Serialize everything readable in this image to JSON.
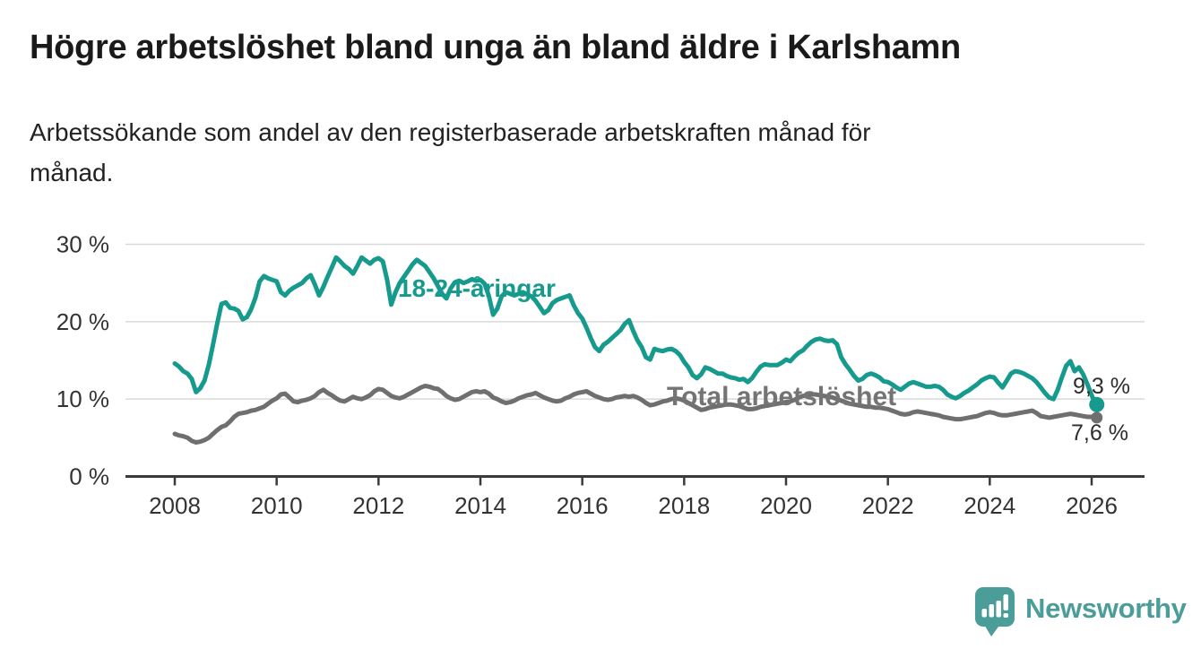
{
  "header": {
    "title": "Högre arbetslöshet bland unga än bland äldre i Karlshamn",
    "subtitle": "Arbetssökande som andel av den registerbaserade arbetskraften månad för\nmånad."
  },
  "footer": {
    "logo_text": "Newsworthy"
  },
  "colors": {
    "accent_teal": "#169a8d",
    "line_gray": "#6f6f6f",
    "label_gray": "#747474",
    "brand_teal": "#4b9d99",
    "grid": "#d9d9d9",
    "axis": "#3a3a3a",
    "tick_text": "#333333",
    "value_text": "#2d2d2d"
  },
  "chart_data": {
    "type": "line",
    "title": "Högre arbetslöshet bland unga än bland äldre i Karlshamn",
    "subtitle": "Arbetssökande som andel av den registerbaserade arbetskraften månad för månad.",
    "xlabel": "",
    "ylabel": "",
    "grid": "horizontal",
    "legend_position": "inline-labels",
    "x_start_year": 2008,
    "x_step_months": 1,
    "xlim_years": [
      2007.05,
      2027.1
    ],
    "ylim": [
      0,
      30
    ],
    "x_ticks": [
      "2008",
      "2010",
      "2012",
      "2014",
      "2016",
      "2018",
      "2020",
      "2022",
      "2024",
      "2026"
    ],
    "y_ticks": [
      {
        "value": 0,
        "label": "0 %"
      },
      {
        "value": 10,
        "label": "10 %"
      },
      {
        "value": 20,
        "label": "20 %"
      },
      {
        "value": 30,
        "label": "30 %"
      }
    ],
    "series": [
      {
        "name": "Total arbetslöshet",
        "color": "#6f6f6f",
        "end_label": "7,6 %",
        "end_value": 7.6,
        "values": [
          5.5,
          5.3,
          5.2,
          5.0,
          4.6,
          4.4,
          4.5,
          4.7,
          5.0,
          5.5,
          6.0,
          6.4,
          6.6,
          7.1,
          7.7,
          8.1,
          8.2,
          8.3,
          8.5,
          8.6,
          8.8,
          9.0,
          9.4,
          9.8,
          10.1,
          10.6,
          10.7,
          10.2,
          9.7,
          9.6,
          9.8,
          9.9,
          10.1,
          10.4,
          10.9,
          11.2,
          10.8,
          10.5,
          10.1,
          9.8,
          9.7,
          10.0,
          10.3,
          10.1,
          10.0,
          10.2,
          10.5,
          11.0,
          11.3,
          11.2,
          10.8,
          10.4,
          10.2,
          10.1,
          10.3,
          10.6,
          10.9,
          11.2,
          11.5,
          11.7,
          11.6,
          11.4,
          11.3,
          10.9,
          10.4,
          10.1,
          9.9,
          10.0,
          10.3,
          10.6,
          10.9,
          11.0,
          10.9,
          11.0,
          10.7,
          10.2,
          10.0,
          9.7,
          9.5,
          9.6,
          9.8,
          10.1,
          10.3,
          10.5,
          10.6,
          10.8,
          10.5,
          10.2,
          10.0,
          9.8,
          9.7,
          9.8,
          10.1,
          10.3,
          10.6,
          10.8,
          10.9,
          11.0,
          10.7,
          10.4,
          10.2,
          10.0,
          9.9,
          10.0,
          10.2,
          10.3,
          10.4,
          10.3,
          10.4,
          10.2,
          9.9,
          9.5,
          9.2,
          9.3,
          9.5,
          9.7,
          9.8,
          10.0,
          10.1,
          10.0,
          9.8,
          9.5,
          9.2,
          8.9,
          8.6,
          8.7,
          8.9,
          9.0,
          9.1,
          9.2,
          9.3,
          9.3,
          9.2,
          9.1,
          8.9,
          8.7,
          8.7,
          8.8,
          9.0,
          9.1,
          9.2,
          9.3,
          9.4,
          9.5,
          9.6,
          9.7,
          9.9,
          10.2,
          10.4,
          10.5,
          10.6,
          10.6,
          10.5,
          10.4,
          10.3,
          10.2,
          10.0,
          9.8,
          9.6,
          9.4,
          9.3,
          9.2,
          9.1,
          9.0,
          9.0,
          8.9,
          8.9,
          8.8,
          8.7,
          8.5,
          8.3,
          8.1,
          8.0,
          8.1,
          8.3,
          8.4,
          8.3,
          8.2,
          8.1,
          8.0,
          7.9,
          7.7,
          7.6,
          7.5,
          7.4,
          7.4,
          7.5,
          7.6,
          7.7,
          7.8,
          8.0,
          8.2,
          8.3,
          8.2,
          8.0,
          7.9,
          7.9,
          8.0,
          8.1,
          8.2,
          8.3,
          8.4,
          8.5,
          8.2,
          7.8,
          7.7,
          7.6,
          7.7,
          7.8,
          7.9,
          8.0,
          8.1,
          8.0,
          7.9,
          7.8,
          7.7,
          7.7,
          7.6
        ]
      },
      {
        "name": "18-24-åringar",
        "color": "#169a8d",
        "end_label": "9,3 %",
        "end_value": 9.3,
        "values": [
          14.6,
          14.2,
          13.6,
          13.3,
          12.6,
          10.9,
          11.4,
          12.4,
          14.4,
          17.0,
          19.8,
          22.3,
          22.5,
          21.8,
          21.7,
          21.4,
          20.3,
          20.6,
          21.6,
          23.1,
          25.2,
          25.9,
          25.6,
          25.4,
          25.2,
          23.8,
          23.4,
          24.0,
          24.4,
          24.7,
          25.0,
          25.6,
          26.0,
          24.8,
          23.4,
          24.5,
          25.8,
          27.0,
          28.3,
          27.8,
          27.2,
          26.8,
          26.2,
          27.2,
          28.3,
          27.9,
          27.5,
          28.0,
          28.2,
          27.8,
          25.5,
          22.2,
          23.8,
          25.0,
          25.8,
          26.6,
          27.4,
          28.0,
          27.6,
          27.2,
          26.4,
          25.6,
          24.6,
          23.6,
          23.0,
          24.3,
          25.1,
          25.3,
          25.0,
          25.2,
          25.5,
          25.3,
          25.4,
          24.9,
          23.3,
          20.9,
          21.7,
          23.3,
          23.8,
          23.6,
          23.4,
          23.6,
          23.8,
          23.5,
          23.3,
          22.7,
          21.9,
          21.1,
          21.5,
          22.4,
          22.8,
          23.0,
          23.2,
          23.4,
          22.1,
          21.1,
          20.4,
          19.2,
          17.9,
          16.7,
          16.2,
          17.0,
          17.4,
          17.9,
          18.4,
          18.9,
          19.7,
          20.2,
          18.8,
          17.6,
          16.7,
          15.4,
          15.1,
          16.5,
          16.3,
          16.2,
          16.4,
          16.5,
          16.2,
          15.7,
          14.8,
          14.1,
          13.1,
          12.7,
          13.2,
          14.1,
          13.9,
          13.6,
          13.3,
          13.3,
          13.0,
          12.8,
          12.7,
          12.5,
          12.6,
          12.2,
          12.7,
          13.5,
          14.2,
          14.5,
          14.4,
          14.4,
          14.4,
          14.7,
          15.1,
          14.9,
          15.5,
          16.0,
          16.3,
          16.9,
          17.4,
          17.7,
          17.8,
          17.6,
          17.5,
          17.6,
          17.1,
          15.4,
          14.5,
          13.8,
          13.0,
          12.4,
          12.6,
          13.1,
          13.3,
          13.1,
          12.8,
          12.3,
          12.2,
          11.9,
          11.5,
          11.2,
          11.6,
          12.0,
          12.2,
          12.0,
          11.8,
          11.6,
          11.6,
          11.7,
          11.6,
          11.2,
          10.6,
          10.3,
          10.1,
          10.4,
          10.8,
          11.1,
          11.5,
          11.9,
          12.4,
          12.7,
          12.9,
          12.8,
          12.1,
          11.5,
          12.4,
          13.3,
          13.6,
          13.5,
          13.3,
          13.0,
          12.7,
          12.2,
          11.5,
          10.8,
          10.2,
          10.0,
          11.2,
          12.8,
          14.3,
          14.9,
          13.6,
          14.1,
          13.2,
          11.9,
          10.5,
          9.3
        ]
      }
    ]
  }
}
